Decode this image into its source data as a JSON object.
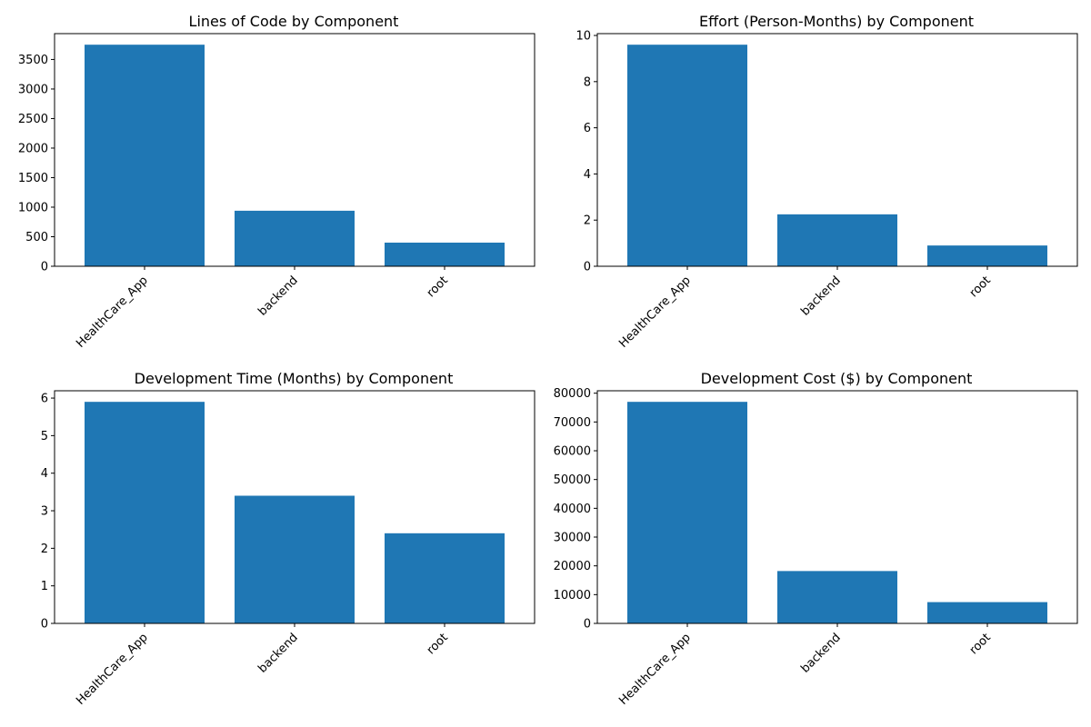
{
  "colors": {
    "bar": "#1f77b4",
    "axis": "#000000",
    "background": "#ffffff"
  },
  "chart_data": [
    {
      "type": "bar",
      "title": "Lines of Code by Component",
      "xlabel": "",
      "ylabel": "",
      "categories": [
        "HealthCare_App",
        "backend",
        "root"
      ],
      "values": [
        3750,
        940,
        400
      ],
      "ylim": [
        0,
        3937.5
      ],
      "yticks": [
        0,
        500,
        1000,
        1500,
        2000,
        2500,
        3000,
        3500
      ],
      "grid": false
    },
    {
      "type": "bar",
      "title": "Effort (Person-Months) by Component",
      "xlabel": "",
      "ylabel": "",
      "categories": [
        "HealthCare_App",
        "backend",
        "root"
      ],
      "values": [
        9.6,
        2.25,
        0.9
      ],
      "ylim": [
        0,
        10.08
      ],
      "yticks": [
        0,
        2,
        4,
        6,
        8,
        10
      ],
      "grid": false
    },
    {
      "type": "bar",
      "title": "Development Time (Months) by Component",
      "xlabel": "",
      "ylabel": "",
      "categories": [
        "HealthCare_App",
        "backend",
        "root"
      ],
      "values": [
        5.9,
        3.4,
        2.4
      ],
      "ylim": [
        0,
        6.195
      ],
      "yticks": [
        0,
        1,
        2,
        3,
        4,
        5,
        6
      ],
      "grid": false
    },
    {
      "type": "bar",
      "title": "Development Cost ($) by Component",
      "xlabel": "",
      "ylabel": "",
      "categories": [
        "HealthCare_App",
        "backend",
        "root"
      ],
      "values": [
        77000,
        18200,
        7400
      ],
      "ylim": [
        0,
        80850
      ],
      "yticks": [
        0,
        10000,
        20000,
        30000,
        40000,
        50000,
        60000,
        70000,
        80000
      ],
      "grid": false
    }
  ]
}
